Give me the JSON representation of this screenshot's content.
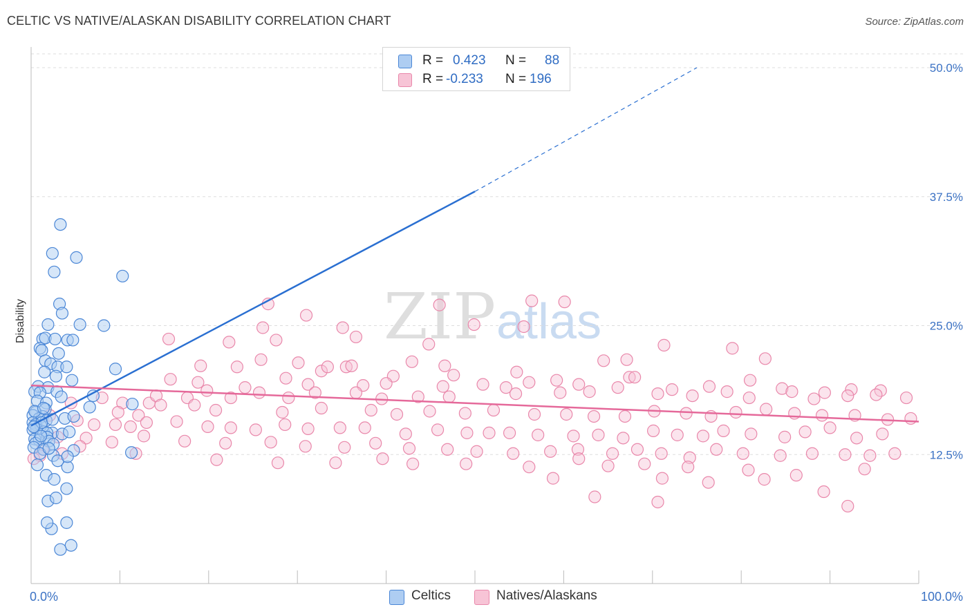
{
  "title": "CELTIC VS NATIVE/ALASKAN DISABILITY CORRELATION CHART",
  "source": "Source: ZipAtlas.com",
  "watermark": {
    "zip": "ZIP",
    "atlas": "atlas"
  },
  "colors": {
    "blue_fill": "#aecdf2",
    "blue_stroke": "#4a86d6",
    "blue_line": "#2a6fd1",
    "pink_fill": "#f7c4d6",
    "pink_stroke": "#e987aa",
    "pink_line": "#e5699a",
    "label": "#3b72c4",
    "grid": "#dddddd"
  },
  "legend": {
    "rows": [
      {
        "r_label": "R =",
        "r_value": "0.423",
        "n_label": "N =",
        "n_value": "88",
        "color": "#aecdf2",
        "border": "#4a86d6"
      },
      {
        "r_label": "R =",
        "r_value": "-0.233",
        "n_label": "N =",
        "n_value": "196",
        "color": "#f7c4d6",
        "border": "#e987aa"
      }
    ]
  },
  "bottom_legend": [
    {
      "label": "Celtics",
      "color": "#aecdf2",
      "border": "#4a86d6"
    },
    {
      "label": "Natives/Alaskans",
      "color": "#f7c4d6",
      "border": "#e987aa"
    }
  ],
  "chart_data": {
    "type": "scatter",
    "title": "CELTIC VS NATIVE/ALASKAN DISABILITY CORRELATION CHART",
    "xlabel": "",
    "ylabel": "Disability",
    "xlim": [
      0,
      100
    ],
    "ylim": [
      0,
      50
    ],
    "x_tick_labels": [
      "0.0%",
      "100.0%"
    ],
    "y_ticks": [
      12.5,
      25.0,
      37.5,
      50.0
    ],
    "y_tick_labels": [
      "12.5%",
      "25.0%",
      "37.5%",
      "50.0%"
    ],
    "grid": true,
    "series": [
      {
        "name": "Celtics",
        "R": 0.423,
        "N": 88,
        "trend": {
          "x0": 0,
          "y0": 15.3,
          "x1": 50,
          "y1": 38.0,
          "dashed_to_x": 75,
          "dashed_to_y": 50.0
        },
        "points": [
          [
            3.3,
            34.8
          ],
          [
            2.4,
            32.0
          ],
          [
            5.1,
            31.6
          ],
          [
            10.3,
            29.8
          ],
          [
            2.6,
            30.2
          ],
          [
            3.2,
            27.1
          ],
          [
            3.5,
            26.2
          ],
          [
            5.5,
            25.1
          ],
          [
            1.9,
            25.1
          ],
          [
            8.2,
            25.0
          ],
          [
            1.3,
            23.7
          ],
          [
            1.6,
            23.8
          ],
          [
            2.7,
            23.7
          ],
          [
            4.1,
            23.6
          ],
          [
            4.7,
            23.6
          ],
          [
            1.0,
            22.8
          ],
          [
            1.2,
            22.6
          ],
          [
            3.1,
            22.3
          ],
          [
            1.6,
            21.6
          ],
          [
            2.2,
            21.3
          ],
          [
            3.0,
            21.0
          ],
          [
            4.0,
            21.0
          ],
          [
            9.5,
            20.8
          ],
          [
            1.5,
            20.5
          ],
          [
            2.8,
            20.1
          ],
          [
            4.6,
            19.7
          ],
          [
            0.8,
            19.1
          ],
          [
            1.9,
            19.0
          ],
          [
            2.9,
            18.6
          ],
          [
            0.4,
            18.6
          ],
          [
            1.0,
            18.5
          ],
          [
            3.4,
            18.1
          ],
          [
            7.0,
            18.2
          ],
          [
            0.7,
            17.7
          ],
          [
            1.7,
            17.5
          ],
          [
            6.6,
            17.1
          ],
          [
            11.4,
            17.4
          ],
          [
            1.6,
            16.9
          ],
          [
            0.5,
            16.6
          ],
          [
            0.2,
            16.3
          ],
          [
            1.3,
            16.2
          ],
          [
            3.8,
            16.0
          ],
          [
            4.8,
            16.2
          ],
          [
            0.9,
            16.0
          ],
          [
            1.7,
            15.8
          ],
          [
            0.2,
            15.6
          ],
          [
            0.5,
            15.4
          ],
          [
            1.1,
            15.3
          ],
          [
            0.6,
            15.0
          ],
          [
            0.2,
            14.9
          ],
          [
            1.4,
            14.7
          ],
          [
            2.4,
            14.6
          ],
          [
            1.8,
            14.6
          ],
          [
            3.5,
            14.5
          ],
          [
            4.3,
            14.7
          ],
          [
            1.8,
            14.2
          ],
          [
            0.4,
            14.0
          ],
          [
            0.9,
            13.9
          ],
          [
            2.0,
            13.8
          ],
          [
            0.5,
            13.6
          ],
          [
            2.5,
            13.5
          ],
          [
            0.3,
            13.2
          ],
          [
            1.4,
            13.0
          ],
          [
            4.8,
            12.9
          ],
          [
            1.0,
            12.6
          ],
          [
            2.5,
            12.4
          ],
          [
            3.0,
            11.9
          ],
          [
            0.7,
            11.5
          ],
          [
            4.1,
            11.3
          ],
          [
            1.7,
            10.5
          ],
          [
            2.6,
            10.1
          ],
          [
            4.0,
            9.2
          ],
          [
            1.9,
            8.0
          ],
          [
            2.8,
            8.3
          ],
          [
            4.0,
            5.9
          ],
          [
            2.3,
            5.3
          ],
          [
            4.5,
            3.7
          ],
          [
            1.8,
            5.9
          ],
          [
            3.3,
            3.3
          ],
          [
            11.3,
            12.7
          ],
          [
            1.2,
            15.6
          ],
          [
            2.4,
            15.9
          ],
          [
            0.4,
            16.7
          ],
          [
            1.4,
            17.0
          ],
          [
            0.3,
            15.2
          ],
          [
            1.1,
            14.3
          ],
          [
            4.1,
            12.3
          ],
          [
            2.0,
            13.1
          ]
        ]
      },
      {
        "name": "Natives/Alaskans",
        "R": -0.233,
        "N": 196,
        "trend": {
          "x0": 0,
          "y0": 19.2,
          "x1": 100,
          "y1": 15.7
        },
        "points": [
          [
            26.7,
            27.1
          ],
          [
            56.4,
            27.4
          ],
          [
            60.1,
            27.3
          ],
          [
            46.0,
            27.0
          ],
          [
            31.0,
            26.0
          ],
          [
            49.9,
            25.1
          ],
          [
            26.1,
            24.8
          ],
          [
            35.1,
            24.8
          ],
          [
            55.5,
            24.9
          ],
          [
            15.5,
            23.7
          ],
          [
            36.6,
            23.9
          ],
          [
            22.3,
            23.4
          ],
          [
            27.6,
            23.6
          ],
          [
            44.8,
            23.2
          ],
          [
            71.3,
            23.1
          ],
          [
            79.0,
            22.8
          ],
          [
            82.7,
            21.8
          ],
          [
            64.5,
            21.6
          ],
          [
            67.1,
            21.7
          ],
          [
            25.9,
            21.7
          ],
          [
            30.1,
            21.4
          ],
          [
            35.5,
            21.0
          ],
          [
            19.1,
            21.1
          ],
          [
            23.2,
            21.0
          ],
          [
            42.9,
            21.5
          ],
          [
            46.6,
            21.1
          ],
          [
            54.7,
            20.5
          ],
          [
            67.4,
            20.0
          ],
          [
            32.7,
            20.6
          ],
          [
            36.1,
            21.1
          ],
          [
            33.4,
            21.0
          ],
          [
            40.8,
            20.1
          ],
          [
            47.6,
            20.2
          ],
          [
            28.7,
            19.9
          ],
          [
            31.2,
            19.3
          ],
          [
            40.0,
            19.4
          ],
          [
            56.1,
            19.5
          ],
          [
            59.2,
            19.7
          ],
          [
            68.0,
            20.0
          ],
          [
            81.0,
            19.7
          ],
          [
            76.4,
            19.1
          ],
          [
            61.7,
            19.3
          ],
          [
            53.5,
            19.0
          ],
          [
            15.7,
            19.8
          ],
          [
            18.8,
            19.5
          ],
          [
            24.1,
            19.0
          ],
          [
            37.4,
            19.2
          ],
          [
            46.4,
            19.1
          ],
          [
            50.9,
            19.3
          ],
          [
            66.1,
            19.0
          ],
          [
            72.2,
            18.8
          ],
          [
            78.4,
            18.6
          ],
          [
            84.6,
            18.9
          ],
          [
            89.4,
            18.5
          ],
          [
            92.4,
            18.8
          ],
          [
            95.7,
            18.7
          ],
          [
            8.0,
            18.0
          ],
          [
            10.3,
            17.5
          ],
          [
            13.3,
            17.5
          ],
          [
            14.1,
            18.2
          ],
          [
            17.6,
            18.0
          ],
          [
            19.8,
            18.7
          ],
          [
            22.5,
            18.0
          ],
          [
            25.7,
            18.5
          ],
          [
            29.0,
            18.0
          ],
          [
            32.0,
            18.5
          ],
          [
            36.6,
            18.5
          ],
          [
            39.5,
            17.9
          ],
          [
            43.6,
            18.1
          ],
          [
            47.1,
            18.1
          ],
          [
            54.6,
            18.4
          ],
          [
            59.6,
            18.5
          ],
          [
            62.9,
            18.6
          ],
          [
            70.6,
            18.4
          ],
          [
            74.5,
            18.2
          ],
          [
            80.9,
            18.0
          ],
          [
            85.7,
            18.6
          ],
          [
            88.2,
            17.9
          ],
          [
            92.0,
            18.2
          ],
          [
            95.2,
            18.3
          ],
          [
            98.6,
            18.0
          ],
          [
            4.5,
            17.5
          ],
          [
            9.8,
            16.6
          ],
          [
            12.1,
            16.3
          ],
          [
            14.6,
            17.3
          ],
          [
            18.4,
            17.3
          ],
          [
            20.8,
            16.8
          ],
          [
            28.3,
            16.6
          ],
          [
            32.7,
            17.0
          ],
          [
            38.3,
            16.8
          ],
          [
            41.2,
            16.4
          ],
          [
            44.9,
            16.7
          ],
          [
            48.9,
            16.5
          ],
          [
            52.1,
            16.8
          ],
          [
            56.7,
            16.4
          ],
          [
            60.3,
            16.4
          ],
          [
            63.4,
            16.2
          ],
          [
            66.9,
            16.2
          ],
          [
            70.2,
            16.7
          ],
          [
            73.8,
            16.5
          ],
          [
            76.6,
            16.2
          ],
          [
            79.4,
            16.6
          ],
          [
            82.8,
            16.9
          ],
          [
            86.0,
            16.5
          ],
          [
            89.1,
            16.3
          ],
          [
            92.8,
            16.3
          ],
          [
            96.5,
            15.9
          ],
          [
            99.1,
            16.0
          ],
          [
            2.1,
            16.3
          ],
          [
            5.2,
            15.8
          ],
          [
            7.1,
            15.4
          ],
          [
            9.5,
            15.4
          ],
          [
            11.2,
            15.2
          ],
          [
            13.0,
            15.6
          ],
          [
            16.4,
            15.7
          ],
          [
            19.9,
            15.2
          ],
          [
            22.5,
            15.1
          ],
          [
            25.3,
            14.9
          ],
          [
            28.6,
            15.4
          ],
          [
            31.2,
            15.0
          ],
          [
            34.8,
            15.1
          ],
          [
            37.6,
            15.1
          ],
          [
            42.2,
            14.5
          ],
          [
            45.8,
            14.9
          ],
          [
            49.1,
            14.6
          ],
          [
            51.6,
            14.6
          ],
          [
            53.9,
            14.6
          ],
          [
            57.1,
            14.4
          ],
          [
            61.1,
            14.3
          ],
          [
            63.9,
            14.4
          ],
          [
            66.7,
            14.1
          ],
          [
            70.1,
            14.8
          ],
          [
            72.8,
            14.4
          ],
          [
            75.7,
            14.3
          ],
          [
            78.0,
            14.8
          ],
          [
            81.1,
            14.5
          ],
          [
            84.9,
            14.2
          ],
          [
            87.2,
            14.7
          ],
          [
            90.0,
            15.1
          ],
          [
            93.0,
            14.1
          ],
          [
            95.9,
            14.5
          ],
          [
            3.0,
            14.2
          ],
          [
            6.2,
            14.1
          ],
          [
            9.1,
            13.7
          ],
          [
            12.7,
            14.3
          ],
          [
            17.3,
            13.8
          ],
          [
            21.9,
            13.6
          ],
          [
            27.0,
            13.7
          ],
          [
            30.9,
            13.3
          ],
          [
            35.3,
            13.2
          ],
          [
            38.8,
            13.6
          ],
          [
            42.6,
            13.1
          ],
          [
            46.9,
            13.0
          ],
          [
            50.2,
            12.8
          ],
          [
            54.3,
            12.6
          ],
          [
            58.5,
            12.8
          ],
          [
            61.6,
            13.0
          ],
          [
            65.5,
            12.6
          ],
          [
            68.3,
            13.0
          ],
          [
            71.0,
            12.6
          ],
          [
            74.2,
            12.2
          ],
          [
            77.2,
            13.0
          ],
          [
            80.2,
            12.6
          ],
          [
            84.4,
            12.4
          ],
          [
            88.0,
            12.6
          ],
          [
            91.7,
            12.5
          ],
          [
            94.5,
            12.4
          ],
          [
            97.3,
            12.6
          ],
          [
            1.3,
            13.0
          ],
          [
            1.0,
            12.4
          ],
          [
            0.3,
            12.1
          ],
          [
            3.5,
            12.6
          ],
          [
            5.5,
            13.3
          ],
          [
            11.8,
            12.6
          ],
          [
            20.9,
            12.0
          ],
          [
            27.8,
            11.7
          ],
          [
            34.3,
            11.7
          ],
          [
            39.6,
            12.1
          ],
          [
            43.0,
            11.6
          ],
          [
            49.0,
            11.6
          ],
          [
            56.1,
            11.3
          ],
          [
            61.7,
            12.1
          ],
          [
            65.0,
            11.4
          ],
          [
            69.1,
            11.6
          ],
          [
            74.0,
            11.3
          ],
          [
            80.8,
            11.0
          ],
          [
            86.2,
            10.5
          ],
          [
            93.9,
            11.1
          ],
          [
            58.8,
            10.2
          ],
          [
            71.1,
            10.2
          ],
          [
            82.6,
            10.1
          ],
          [
            76.3,
            9.8
          ],
          [
            89.3,
            8.9
          ],
          [
            92.0,
            7.5
          ],
          [
            70.6,
            7.9
          ],
          [
            63.5,
            8.4
          ]
        ]
      }
    ]
  }
}
